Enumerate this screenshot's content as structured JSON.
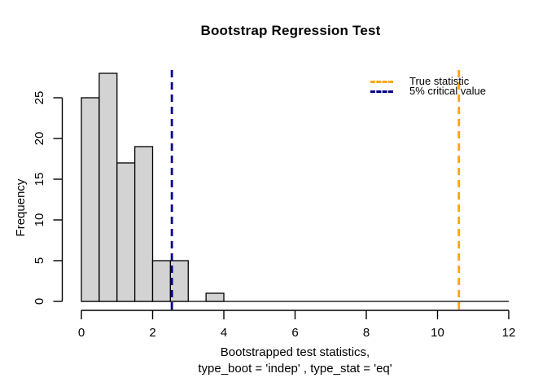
{
  "chart_data": {
    "type": "bar",
    "subtype": "histogram",
    "title": "Bootstrap Regression Test",
    "ylabel": "Frequency",
    "xlabel_line1": "Bootstrapped test statistics,",
    "xlabel_line2": "type_boot = 'indep' , type_stat = 'eq'",
    "bin_start": 0,
    "bin_width": 0.5,
    "counts": [
      25,
      28,
      17,
      19,
      5,
      5,
      0,
      1
    ],
    "x_ticks": [
      "0",
      "2",
      "4",
      "6",
      "8",
      "10",
      "12"
    ],
    "x_tick_values": [
      0,
      2,
      4,
      6,
      8,
      10,
      12
    ],
    "y_ticks": [
      "0",
      "5",
      "10",
      "15",
      "20",
      "25"
    ],
    "y_tick_values": [
      0,
      5,
      10,
      15,
      20,
      25
    ],
    "xlim": [
      0,
      12
    ],
    "ylim": [
      0,
      28
    ],
    "grid": "off",
    "legend_position": "topright",
    "vlines": [
      {
        "label": "True statistic",
        "x": 10.6,
        "color": "#FFA500",
        "style": "dashed"
      },
      {
        "label": "5% critical value",
        "x": 2.54,
        "color": "#00008B",
        "style": "dashed"
      }
    ],
    "colors": {
      "bar_fill": "#D3D3D3",
      "bar_border": "#000000",
      "axis": "#000000",
      "text": "#000000"
    }
  }
}
